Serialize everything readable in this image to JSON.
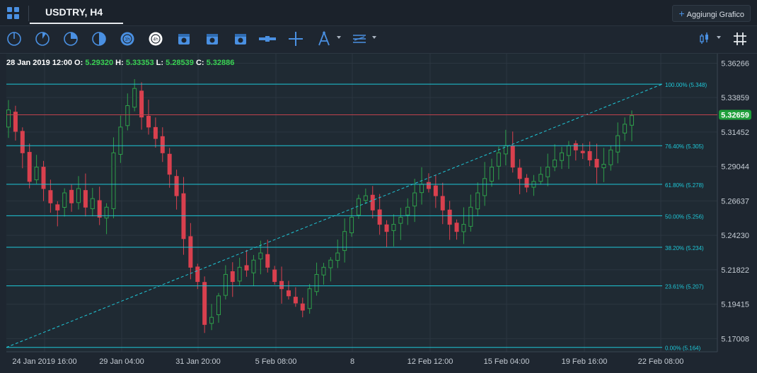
{
  "topbar": {
    "symbol_tab": "USDTRY, H4",
    "add_chart_label": "Aggiungi Grafico"
  },
  "toolbar": {
    "icons": [
      "timeframe-m1-icon",
      "timeframe-m5-icon",
      "timeframe-m15-icon",
      "timeframe-m30-icon",
      "timeframe-h1-icon",
      "timeframe-h4-icon",
      "timeframe-d1-icon",
      "timeframe-w1-icon",
      "timeframe-mn-icon",
      "horizontal-line-icon",
      "crosshair-icon",
      "fibonacci-tool-icon",
      "levels-tool-icon",
      "chart-type-icon",
      "grid-icon"
    ]
  },
  "ohlc": {
    "date": "28 Jan 2019 12:00",
    "o_label": "O:",
    "o": "5.29320",
    "h_label": "H:",
    "h": "5.33353",
    "l_label": "L:",
    "l": "5.28539",
    "c_label": "C:",
    "c": "5.32886"
  },
  "price_axis": [
    "5.36266",
    "5.33859",
    "5.31452",
    "5.29044",
    "5.26637",
    "5.24230",
    "5.21822",
    "5.19415",
    "5.17008"
  ],
  "time_axis": [
    "24 Jan 2019 16:00",
    "29 Jan 04:00",
    "31 Jan 20:00",
    "5 Feb 08:00",
    "8",
    "12 Feb 12:00",
    "15 Feb 04:00",
    "19 Feb 16:00",
    "22 Feb 08:00"
  ],
  "current_price": "5.32659",
  "fib_levels": [
    {
      "label": "100.00% (5.348)",
      "price": 5.348
    },
    {
      "label": "76.40% (5.305)",
      "price": 5.305
    },
    {
      "label": "61.80% (5.278)",
      "price": 5.278
    },
    {
      "label": "50.00% (5.256)",
      "price": 5.256
    },
    {
      "label": "38.20% (5.234)",
      "price": 5.234
    },
    {
      "label": "23.61% (5.207)",
      "price": 5.207
    },
    {
      "label": "0.00% (5.164)",
      "price": 5.164
    }
  ],
  "colors": {
    "up": "#2e9e4a",
    "down": "#d9404e",
    "fib": "#1fc8d8",
    "price_line": "#c0424c",
    "badge": "#1e9f3a"
  },
  "chart_data": {
    "type": "candlestick",
    "symbol": "USDTRY",
    "timeframe": "H4",
    "ylim": [
      5.1609,
      5.3693
    ],
    "close_path": [
      5.33,
      5.315,
      5.3,
      5.28,
      5.29,
      5.275,
      5.265,
      5.26,
      5.272,
      5.265,
      5.275,
      5.262,
      5.268,
      5.255,
      5.262,
      5.3,
      5.318,
      5.333,
      5.345,
      5.325,
      5.318,
      5.31,
      5.3,
      5.285,
      5.27,
      5.24,
      5.22,
      5.21,
      5.18,
      5.185,
      5.2,
      5.215,
      5.21,
      5.22,
      5.218,
      5.225,
      5.23,
      5.22,
      5.21,
      5.205,
      5.2,
      5.195,
      5.19,
      5.205,
      5.215,
      5.22,
      5.225,
      5.23,
      5.245,
      5.255,
      5.268,
      5.27,
      5.26,
      5.25,
      5.245,
      5.25,
      5.255,
      5.262,
      5.272,
      5.278,
      5.275,
      5.27,
      5.26,
      5.25,
      5.245,
      5.25,
      5.262,
      5.272,
      5.282,
      5.29,
      5.3,
      5.305,
      5.29,
      5.282,
      5.276,
      5.28,
      5.285,
      5.29,
      5.295,
      5.3,
      5.305,
      5.302,
      5.3,
      5.295,
      5.29,
      5.292,
      5.302,
      5.312,
      5.32,
      5.326
    ]
  }
}
